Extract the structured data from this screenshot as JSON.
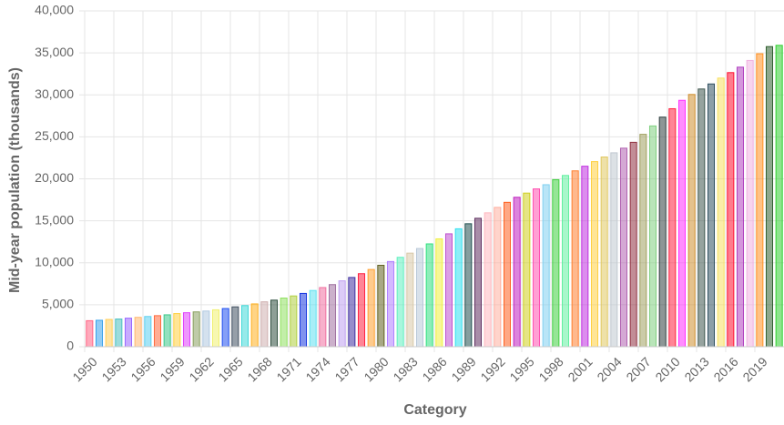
{
  "chart_data": {
    "type": "bar",
    "x_label": "Category",
    "y_label": "Mid-year population (thousands)",
    "categories": [
      "1950",
      null,
      null,
      "1953",
      null,
      null,
      "1956",
      null,
      null,
      "1959",
      null,
      null,
      "1962",
      null,
      null,
      "1965",
      null,
      null,
      "1968",
      null,
      null,
      "1971",
      null,
      null,
      "1974",
      null,
      null,
      "1977",
      null,
      null,
      "1980",
      null,
      null,
      "1983",
      null,
      null,
      "1986",
      null,
      null,
      "1989",
      null,
      null,
      "1992",
      null,
      null,
      "1995",
      null,
      null,
      "1998",
      null,
      null,
      "2001",
      null,
      null,
      "2004",
      null,
      null,
      "2007",
      null,
      null,
      "2010",
      null,
      null,
      "2013",
      null,
      null,
      "2016",
      null,
      null,
      "2019",
      null,
      null
    ],
    "values": [
      3100,
      3150,
      3250,
      3300,
      3400,
      3500,
      3600,
      3700,
      3800,
      3950,
      4050,
      4150,
      4250,
      4400,
      4550,
      4750,
      4900,
      5100,
      5350,
      5550,
      5800,
      6050,
      6350,
      6700,
      7050,
      7400,
      7850,
      8250,
      8700,
      9200,
      9700,
      10150,
      10650,
      11150,
      11700,
      12250,
      12850,
      13450,
      14050,
      14650,
      15300,
      15950,
      16600,
      17200,
      17800,
      18300,
      18800,
      19300,
      19900,
      20400,
      20950,
      21500,
      22050,
      22600,
      23100,
      23650,
      24350,
      25300,
      26300,
      27350,
      28350,
      29350,
      30050,
      30700,
      31300,
      32000,
      32650,
      33300,
      34100,
      34900,
      35750,
      35900
    ],
    "colors": [
      "#ff6384",
      "#36a2eb",
      "#ffce56",
      "#4bc0c0",
      "#9966ff",
      "#ffb870",
      "#5ad0f0",
      "#ff6a3d",
      "#3cc98a",
      "#ffd040",
      "#e040fb",
      "#8aa060",
      "#b0c8e0",
      "#f0f070",
      "#2050f0",
      "#405060",
      "#40d8d8",
      "#ffb020",
      "#d0b0b0",
      "#305040",
      "#90e060",
      "#b0d040",
      "#1838e0",
      "#60e0f0",
      "#f070a0",
      "#a070a0",
      "#c0a0f0",
      "#4030a0",
      "#ff2040",
      "#ffa030",
      "#606020",
      "#b080ff",
      "#60f0c0",
      "#d8c8a8",
      "#b8c8d8",
      "#30e080",
      "#f0f040",
      "#c050d0",
      "#30e0f0",
      "#205050",
      "#603060",
      "#ffb8c0",
      "#ffb0a0",
      "#ff6020",
      "#c020c0",
      "#d0d020",
      "#ff50b0",
      "#80d0f0",
      "#40d040",
      "#60f0a0",
      "#ff8030",
      "#c030e0",
      "#ffd040",
      "#e0c860",
      "#c0c8d0",
      "#b060b0",
      "#903040",
      "#a0a060",
      "#80d080",
      "#304040",
      "#ff2040",
      "#ff30ff",
      "#d09030",
      "#405850",
      "#305060",
      "#f8e060",
      "#ff1030",
      "#b040c0",
      "#f0b0e0",
      "#ff9020",
      "#306030",
      "#30d030"
    ],
    "ylim": [
      0,
      40000
    ],
    "yticks": [
      0,
      {
        "value": 5000,
        "label": "5,000"
      },
      {
        "value": 10000,
        "label": "10,000"
      },
      {
        "value": 15000,
        "label": "15,000"
      },
      {
        "value": 20000,
        "label": "20,000"
      },
      {
        "value": 25000,
        "label": "25,000"
      },
      {
        "value": 30000,
        "label": "30,000"
      },
      {
        "value": 35000,
        "label": "35,000"
      },
      {
        "value": 40000,
        "label": "40,000"
      }
    ],
    "grid": true
  }
}
